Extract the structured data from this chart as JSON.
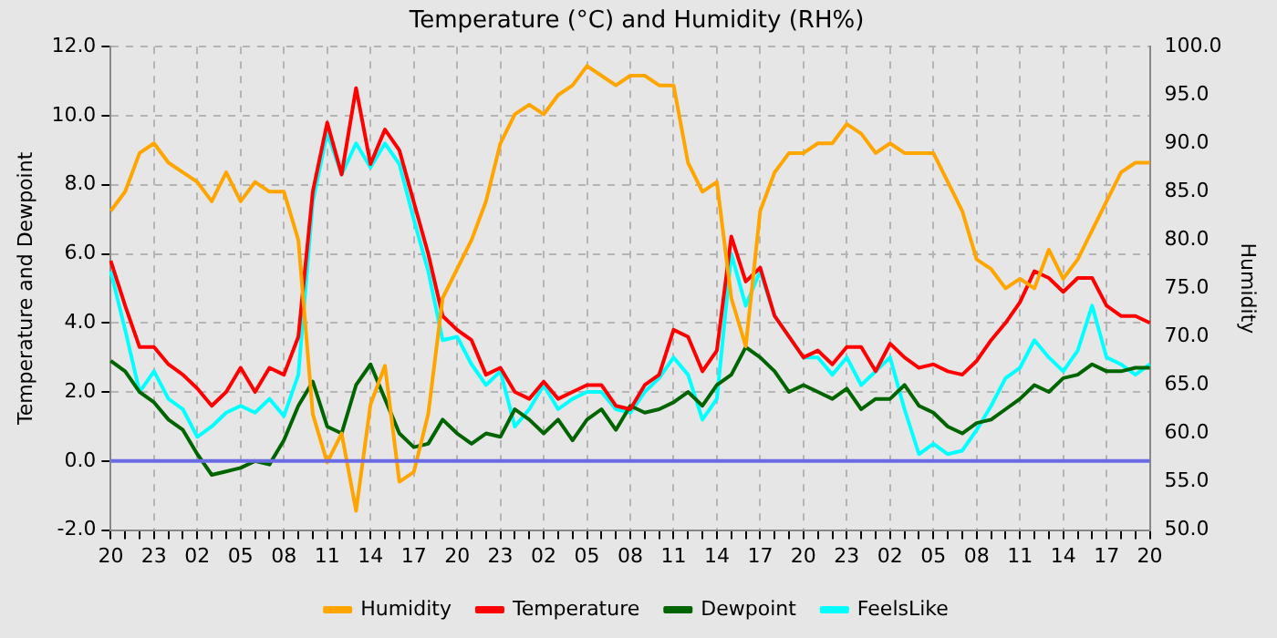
{
  "chart_data": {
    "type": "line",
    "title": "Temperature (°C) and Humidity (RH%)",
    "ylabel": "Temperature and Dewpoint",
    "y2label": "Humidity",
    "categories": [
      "20",
      null,
      null,
      "23",
      null,
      null,
      "02",
      null,
      null,
      "05",
      null,
      null,
      "08",
      null,
      null,
      "11",
      null,
      null,
      "14",
      null,
      null,
      "17",
      null,
      null,
      "20",
      null,
      null,
      "23",
      null,
      null,
      "02",
      null,
      null,
      "05",
      null,
      null,
      "08",
      null,
      null,
      "11",
      null,
      null,
      "14",
      null,
      null,
      "17",
      null,
      null,
      "20",
      null,
      null,
      "23",
      null,
      null,
      "02",
      null,
      null,
      "05",
      null,
      null,
      "08",
      null,
      null,
      "11",
      null,
      null,
      "14",
      null,
      null,
      "17",
      null,
      null,
      "20"
    ],
    "ylim": [
      -2,
      12
    ],
    "yticks": [
      {
        "value": -2,
        "label": "-2.0"
      },
      {
        "value": 0,
        "label": "0.0"
      },
      {
        "value": 2,
        "label": "2.0"
      },
      {
        "value": 4,
        "label": "4.0"
      },
      {
        "value": 6,
        "label": "6.0"
      },
      {
        "value": 8,
        "label": "8.0"
      },
      {
        "value": 10,
        "label": "10.0"
      },
      {
        "value": 12,
        "label": "12.0"
      }
    ],
    "y2lim": [
      50,
      100
    ],
    "y2ticks": [
      {
        "value": 50,
        "label": "50.0"
      },
      {
        "value": 55,
        "label": "55.0"
      },
      {
        "value": 60,
        "label": "60.0"
      },
      {
        "value": 65,
        "label": "65.0"
      },
      {
        "value": 70,
        "label": "70.0"
      },
      {
        "value": 75,
        "label": "75.0"
      },
      {
        "value": 80,
        "label": "80.0"
      },
      {
        "value": 85,
        "label": "85.0"
      },
      {
        "value": 90,
        "label": "90.0"
      },
      {
        "value": 95,
        "label": "95.0"
      },
      {
        "value": 100,
        "label": "100.0"
      }
    ],
    "grid": true,
    "legend": "bottom",
    "marker": "none",
    "line_style": "solid",
    "ref_lines": [
      {
        "axis": "y",
        "value": 0,
        "color": "#6a6ae6"
      }
    ],
    "series": [
      {
        "name": "FeelsLike",
        "color": "#00ffff",
        "values": [
          5.5,
          3.8,
          2.0,
          2.6,
          1.8,
          1.5,
          0.7,
          1.0,
          1.4,
          1.6,
          1.4,
          1.8,
          1.3,
          2.5,
          7.5,
          9.5,
          8.3,
          9.2,
          8.5,
          9.2,
          8.6,
          7.0,
          5.5,
          3.5,
          3.6,
          2.8,
          2.2,
          2.6,
          1.0,
          1.5,
          2.2,
          1.5,
          1.8,
          2.0,
          2.0,
          1.5,
          1.4,
          2.0,
          2.4,
          3.0,
          2.5,
          1.2,
          1.8,
          6.0,
          4.5,
          5.5,
          4.2,
          3.6,
          3.0,
          3.0,
          2.5,
          3.0,
          2.2,
          2.6,
          3.0,
          1.5,
          0.2,
          0.5,
          0.2,
          0.3,
          0.9,
          1.6,
          2.4,
          2.7,
          3.5,
          3.0,
          2.6,
          3.2,
          4.5,
          3.0,
          2.8,
          2.5,
          2.8
        ]
      },
      {
        "name": "Dewpoint",
        "color": "#006400",
        "values": [
          2.9,
          2.6,
          2.0,
          1.7,
          1.2,
          0.9,
          0.2,
          -0.4,
          -0.3,
          -0.2,
          0.0,
          -0.1,
          0.6,
          1.6,
          2.3,
          1.0,
          0.8,
          2.2,
          2.8,
          1.8,
          0.8,
          0.4,
          0.5,
          1.2,
          0.8,
          0.5,
          0.8,
          0.7,
          1.5,
          1.2,
          0.8,
          1.2,
          0.6,
          1.2,
          1.5,
          0.9,
          1.6,
          1.4,
          1.5,
          1.7,
          2.0,
          1.6,
          2.2,
          2.5,
          3.3,
          3.0,
          2.6,
          2.0,
          2.2,
          2.0,
          1.8,
          2.1,
          1.5,
          1.8,
          1.8,
          2.2,
          1.6,
          1.4,
          1.0,
          0.8,
          1.1,
          1.2,
          1.5,
          1.8,
          2.2,
          2.0,
          2.4,
          2.5,
          2.8,
          2.6,
          2.6,
          2.7,
          2.7
        ]
      },
      {
        "name": "Temperature",
        "color": "#ff0000",
        "values": [
          5.8,
          4.5,
          3.3,
          3.3,
          2.8,
          2.5,
          2.1,
          1.6,
          2.0,
          2.7,
          2.0,
          2.7,
          2.5,
          3.6,
          7.8,
          9.8,
          8.3,
          10.8,
          8.6,
          9.6,
          9.0,
          7.5,
          6.0,
          4.2,
          3.8,
          3.5,
          2.5,
          2.7,
          2.0,
          1.8,
          2.3,
          1.8,
          2.0,
          2.2,
          2.2,
          1.6,
          1.5,
          2.2,
          2.5,
          3.8,
          3.6,
          2.6,
          3.2,
          6.5,
          5.2,
          5.6,
          4.2,
          3.6,
          3.0,
          3.2,
          2.8,
          3.3,
          3.3,
          2.6,
          3.4,
          3.0,
          2.7,
          2.8,
          2.6,
          2.5,
          2.9,
          3.5,
          4.0,
          4.6,
          5.5,
          5.3,
          4.9,
          5.3,
          5.3,
          4.5,
          4.2,
          4.2,
          4.0
        ]
      },
      {
        "name": "Humidity",
        "color": "#ffa500",
        "axis": "y2",
        "values": [
          83,
          85,
          89,
          90,
          88,
          87,
          86,
          84,
          87,
          84,
          86,
          85,
          85,
          80,
          62,
          57,
          60,
          52,
          63,
          67,
          55,
          56,
          62,
          74,
          77,
          80,
          84,
          90,
          93,
          94,
          93,
          95,
          96,
          98,
          97,
          96,
          97,
          97,
          96,
          96,
          88,
          85,
          86,
          74,
          69,
          83,
          87,
          89,
          89,
          90,
          90,
          92,
          91,
          89,
          90,
          89,
          89,
          89,
          86,
          83,
          78,
          77,
          75,
          76,
          75,
          79,
          76,
          78,
          81,
          84,
          87,
          88,
          88
        ]
      }
    ]
  }
}
